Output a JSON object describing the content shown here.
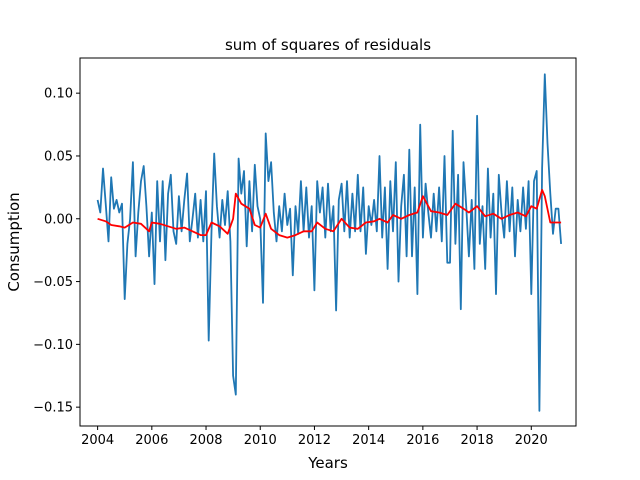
{
  "chart_data": {
    "type": "line",
    "title": "sum of squares of residuals",
    "xlabel": "Years",
    "ylabel": "Consumption",
    "xlim": [
      2003.35,
      2021.65
    ],
    "ylim": [
      -0.165,
      0.128
    ],
    "xticks": [
      2004,
      2006,
      2008,
      2010,
      2012,
      2014,
      2016,
      2018,
      2020
    ],
    "yticks": [
      -0.15,
      -0.1,
      -0.05,
      0.0,
      0.05,
      0.1
    ],
    "ytick_labels": [
      "−0.15",
      "−0.10",
      "−0.05",
      "0.00",
      "0.05",
      "0.10"
    ],
    "grid": false,
    "legend": "none",
    "series": [
      {
        "color": "#1f77b4",
        "points": [
          [
            2004.0,
            0.015
          ],
          [
            2004.1,
            0.005
          ],
          [
            2004.2,
            0.04
          ],
          [
            2004.3,
            0.012
          ],
          [
            2004.4,
            -0.018
          ],
          [
            2004.5,
            0.033
          ],
          [
            2004.6,
            0.008
          ],
          [
            2004.7,
            0.015
          ],
          [
            2004.8,
            0.005
          ],
          [
            2004.9,
            0.012
          ],
          [
            2005.0,
            -0.064
          ],
          [
            2005.1,
            -0.02
          ],
          [
            2005.2,
            0.0
          ],
          [
            2005.3,
            0.045
          ],
          [
            2005.4,
            -0.03
          ],
          [
            2005.5,
            0.005
          ],
          [
            2005.6,
            0.03
          ],
          [
            2005.7,
            0.042
          ],
          [
            2005.8,
            0.01
          ],
          [
            2005.9,
            -0.03
          ],
          [
            2006.0,
            0.005
          ],
          [
            2006.1,
            -0.052
          ],
          [
            2006.2,
            0.03
          ],
          [
            2006.3,
            -0.018
          ],
          [
            2006.4,
            0.03
          ],
          [
            2006.5,
            -0.033
          ],
          [
            2006.6,
            0.02
          ],
          [
            2006.7,
            0.035
          ],
          [
            2006.8,
            -0.01
          ],
          [
            2006.9,
            -0.02
          ],
          [
            2007.0,
            0.018
          ],
          [
            2007.1,
            -0.01
          ],
          [
            2007.2,
            0.015
          ],
          [
            2007.3,
            0.036
          ],
          [
            2007.4,
            -0.018
          ],
          [
            2007.5,
            0.0
          ],
          [
            2007.6,
            0.02
          ],
          [
            2007.7,
            -0.015
          ],
          [
            2007.8,
            0.015
          ],
          [
            2007.9,
            -0.018
          ],
          [
            2008.0,
            0.022
          ],
          [
            2008.1,
            -0.097
          ],
          [
            2008.2,
            -0.01
          ],
          [
            2008.3,
            0.052
          ],
          [
            2008.4,
            0.01
          ],
          [
            2008.5,
            -0.015
          ],
          [
            2008.6,
            0.015
          ],
          [
            2008.7,
            -0.005
          ],
          [
            2008.8,
            0.022
          ],
          [
            2008.9,
            -0.018
          ],
          [
            2009.0,
            -0.125
          ],
          [
            2009.1,
            -0.14
          ],
          [
            2009.2,
            0.048
          ],
          [
            2009.3,
            0.02
          ],
          [
            2009.4,
            0.038
          ],
          [
            2009.5,
            -0.022
          ],
          [
            2009.6,
            0.03
          ],
          [
            2009.7,
            -0.01
          ],
          [
            2009.8,
            0.043
          ],
          [
            2009.9,
            0.01
          ],
          [
            2010.0,
            0.0
          ],
          [
            2010.1,
            -0.067
          ],
          [
            2010.2,
            0.068
          ],
          [
            2010.3,
            0.03
          ],
          [
            2010.4,
            0.045
          ],
          [
            2010.5,
            0.005
          ],
          [
            2010.6,
            -0.018
          ],
          [
            2010.7,
            0.01
          ],
          [
            2010.8,
            -0.01
          ],
          [
            2010.9,
            0.02
          ],
          [
            2011.0,
            -0.005
          ],
          [
            2011.1,
            0.008
          ],
          [
            2011.2,
            -0.045
          ],
          [
            2011.3,
            0.01
          ],
          [
            2011.4,
            -0.012
          ],
          [
            2011.5,
            0.03
          ],
          [
            2011.6,
            -0.01
          ],
          [
            2011.7,
            0.025
          ],
          [
            2011.8,
            -0.015
          ],
          [
            2011.9,
            0.01
          ],
          [
            2012.0,
            -0.057
          ],
          [
            2012.1,
            0.03
          ],
          [
            2012.2,
            0.005
          ],
          [
            2012.3,
            0.025
          ],
          [
            2012.4,
            -0.015
          ],
          [
            2012.5,
            0.028
          ],
          [
            2012.6,
            -0.01
          ],
          [
            2012.7,
            0.01
          ],
          [
            2012.8,
            -0.073
          ],
          [
            2012.9,
            0.015
          ],
          [
            2013.0,
            0.028
          ],
          [
            2013.1,
            -0.01
          ],
          [
            2013.2,
            0.03
          ],
          [
            2013.3,
            -0.015
          ],
          [
            2013.4,
            0.02
          ],
          [
            2013.5,
            -0.01
          ],
          [
            2013.6,
            0.035
          ],
          [
            2013.7,
            -0.01
          ],
          [
            2013.8,
            0.025
          ],
          [
            2013.9,
            -0.028
          ],
          [
            2014.0,
            0.01
          ],
          [
            2014.1,
            -0.005
          ],
          [
            2014.2,
            0.015
          ],
          [
            2014.3,
            -0.01
          ],
          [
            2014.4,
            0.05
          ],
          [
            2014.5,
            -0.015
          ],
          [
            2014.6,
            0.025
          ],
          [
            2014.7,
            -0.04
          ],
          [
            2014.8,
            0.03
          ],
          [
            2014.9,
            -0.01
          ],
          [
            2015.0,
            0.045
          ],
          [
            2015.1,
            -0.05
          ],
          [
            2015.2,
            0.01
          ],
          [
            2015.3,
            0.035
          ],
          [
            2015.4,
            -0.03
          ],
          [
            2015.5,
            0.055
          ],
          [
            2015.6,
            -0.03
          ],
          [
            2015.7,
            0.025
          ],
          [
            2015.8,
            -0.06
          ],
          [
            2015.9,
            0.075
          ],
          [
            2016.0,
            -0.015
          ],
          [
            2016.1,
            0.028
          ],
          [
            2016.2,
            0.005
          ],
          [
            2016.3,
            -0.015
          ],
          [
            2016.4,
            0.02
          ],
          [
            2016.5,
            -0.01
          ],
          [
            2016.6,
            0.025
          ],
          [
            2016.7,
            -0.018
          ],
          [
            2016.8,
            0.05
          ],
          [
            2016.9,
            -0.035
          ],
          [
            2017.0,
            -0.035
          ],
          [
            2017.1,
            0.07
          ],
          [
            2017.2,
            -0.02
          ],
          [
            2017.3,
            0.035
          ],
          [
            2017.4,
            -0.072
          ],
          [
            2017.5,
            0.045
          ],
          [
            2017.6,
            0.01
          ],
          [
            2017.7,
            -0.03
          ],
          [
            2017.8,
            0.015
          ],
          [
            2017.9,
            -0.04
          ],
          [
            2018.0,
            0.082
          ],
          [
            2018.1,
            -0.02
          ],
          [
            2018.2,
            0.01
          ],
          [
            2018.3,
            -0.04
          ],
          [
            2018.4,
            0.04
          ],
          [
            2018.5,
            -0.015
          ],
          [
            2018.6,
            0.02
          ],
          [
            2018.7,
            -0.06
          ],
          [
            2018.8,
            0.035
          ],
          [
            2018.9,
            0.005
          ],
          [
            2019.0,
            -0.015
          ],
          [
            2019.1,
            0.03
          ],
          [
            2019.2,
            -0.01
          ],
          [
            2019.3,
            0.025
          ],
          [
            2019.4,
            -0.03
          ],
          [
            2019.5,
            0.015
          ],
          [
            2019.6,
            -0.01
          ],
          [
            2019.7,
            0.025
          ],
          [
            2019.8,
            -0.008
          ],
          [
            2019.9,
            0.03
          ],
          [
            2020.0,
            -0.06
          ],
          [
            2020.1,
            0.03
          ],
          [
            2020.2,
            0.038
          ],
          [
            2020.3,
            -0.153
          ],
          [
            2020.4,
            0.04
          ],
          [
            2020.5,
            0.115
          ],
          [
            2020.6,
            0.06
          ],
          [
            2020.7,
            0.02
          ],
          [
            2020.8,
            -0.012
          ],
          [
            2020.9,
            0.008
          ],
          [
            2021.0,
            0.008
          ],
          [
            2021.1,
            -0.02
          ]
        ]
      },
      {
        "color": "#ff0000",
        "points": [
          [
            2004.0,
            0.0
          ],
          [
            2004.3,
            -0.002
          ],
          [
            2004.5,
            -0.005
          ],
          [
            2004.8,
            -0.006
          ],
          [
            2005.0,
            -0.007
          ],
          [
            2005.3,
            -0.003
          ],
          [
            2005.6,
            -0.004
          ],
          [
            2005.9,
            -0.01
          ],
          [
            2006.0,
            -0.003
          ],
          [
            2006.3,
            -0.004
          ],
          [
            2006.6,
            -0.006
          ],
          [
            2006.9,
            -0.008
          ],
          [
            2007.2,
            -0.007
          ],
          [
            2007.5,
            -0.01
          ],
          [
            2007.8,
            -0.013
          ],
          [
            2008.0,
            -0.013
          ],
          [
            2008.2,
            -0.003
          ],
          [
            2008.5,
            -0.006
          ],
          [
            2008.8,
            -0.012
          ],
          [
            2009.0,
            0.0
          ],
          [
            2009.1,
            0.02
          ],
          [
            2009.3,
            0.012
          ],
          [
            2009.6,
            0.008
          ],
          [
            2009.8,
            -0.005
          ],
          [
            2010.0,
            -0.007
          ],
          [
            2010.2,
            0.004
          ],
          [
            2010.4,
            -0.008
          ],
          [
            2010.7,
            -0.013
          ],
          [
            2011.0,
            -0.015
          ],
          [
            2011.3,
            -0.013
          ],
          [
            2011.6,
            -0.01
          ],
          [
            2011.9,
            -0.01
          ],
          [
            2012.1,
            -0.003
          ],
          [
            2012.4,
            -0.008
          ],
          [
            2012.7,
            -0.01
          ],
          [
            2013.0,
            0.0
          ],
          [
            2013.3,
            -0.007
          ],
          [
            2013.6,
            -0.008
          ],
          [
            2013.9,
            -0.003
          ],
          [
            2014.2,
            -0.002
          ],
          [
            2014.4,
            0.0
          ],
          [
            2014.7,
            -0.003
          ],
          [
            2014.9,
            0.003
          ],
          [
            2015.2,
            0.0
          ],
          [
            2015.5,
            0.003
          ],
          [
            2015.8,
            0.005
          ],
          [
            2016.0,
            0.018
          ],
          [
            2016.3,
            0.006
          ],
          [
            2016.6,
            0.005
          ],
          [
            2016.9,
            0.003
          ],
          [
            2017.2,
            0.012
          ],
          [
            2017.5,
            0.008
          ],
          [
            2017.7,
            0.005
          ],
          [
            2018.0,
            0.01
          ],
          [
            2018.3,
            0.002
          ],
          [
            2018.6,
            0.004
          ],
          [
            2018.9,
            0.0
          ],
          [
            2019.2,
            0.003
          ],
          [
            2019.5,
            0.005
          ],
          [
            2019.8,
            0.002
          ],
          [
            2020.0,
            0.01
          ],
          [
            2020.2,
            0.008
          ],
          [
            2020.4,
            0.023
          ],
          [
            2020.5,
            0.018
          ],
          [
            2020.7,
            -0.003
          ],
          [
            2021.1,
            -0.003
          ]
        ]
      }
    ]
  }
}
